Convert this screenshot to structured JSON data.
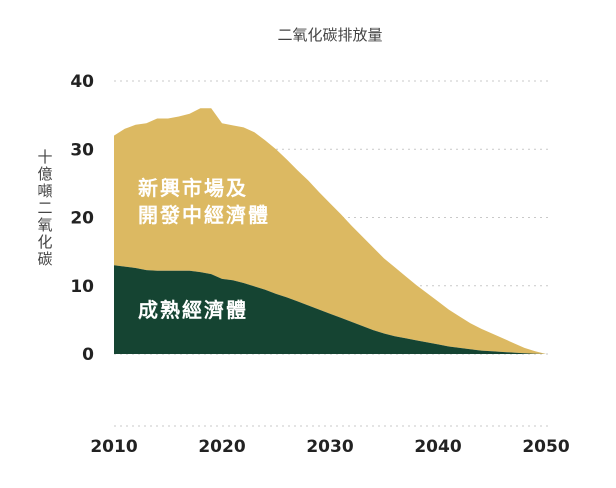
{
  "chart_data": {
    "type": "area",
    "stacked": true,
    "title": "二氧化碳排放量",
    "ylabel": "十億噸二氧化碳",
    "ylim": [
      0,
      40
    ],
    "xlim": [
      2010,
      2050
    ],
    "yticks": [
      "0",
      "10",
      "20",
      "30",
      "40"
    ],
    "xticks": [
      "2010",
      "2020",
      "2030",
      "2040",
      "2050"
    ],
    "grid": true,
    "x": [
      2010,
      2011,
      2012,
      2013,
      2014,
      2015,
      2016,
      2017,
      2018,
      2019,
      2020,
      2021,
      2022,
      2023,
      2024,
      2025,
      2026,
      2027,
      2028,
      2029,
      2030,
      2031,
      2032,
      2033,
      2034,
      2035,
      2036,
      2037,
      2038,
      2039,
      2040,
      2041,
      2042,
      2043,
      2044,
      2045,
      2046,
      2047,
      2048,
      2049,
      2050
    ],
    "series": [
      {
        "name": "成熟經濟體",
        "label_lines": [
          "成熟經濟體"
        ],
        "color": "#154432",
        "values": [
          13,
          12.8,
          12.6,
          12.3,
          12.2,
          12.2,
          12.2,
          12.2,
          12,
          11.7,
          11,
          10.8,
          10.4,
          9.9,
          9.4,
          8.8,
          8.3,
          7.7,
          7.1,
          6.5,
          5.9,
          5.3,
          4.7,
          4.1,
          3.5,
          3,
          2.6,
          2.3,
          2,
          1.7,
          1.4,
          1.1,
          0.9,
          0.7,
          0.5,
          0.4,
          0.3,
          0.2,
          0.1,
          0.05,
          0
        ]
      },
      {
        "name": "新興市場及開發中經濟體",
        "label_lines": [
          "新興市場及",
          "開發中經濟體"
        ],
        "color": "#dcb962",
        "values": [
          19,
          20.2,
          21,
          21.5,
          22.3,
          22.3,
          22.6,
          23,
          24,
          24.3,
          22.8,
          22.7,
          22.8,
          22.6,
          21.9,
          21.2,
          20.2,
          19.2,
          18.3,
          17.2,
          16.2,
          15.2,
          14.1,
          13.1,
          12.1,
          11,
          10.1,
          9.1,
          8.1,
          7.2,
          6.3,
          5.4,
          4.6,
          3.8,
          3.2,
          2.6,
          2,
          1.4,
          0.8,
          0.35,
          0
        ]
      }
    ]
  }
}
